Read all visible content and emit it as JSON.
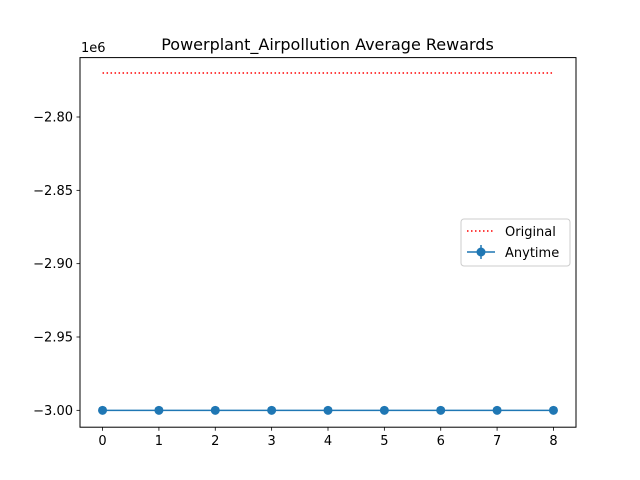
{
  "chart_data": {
    "type": "line",
    "title": "Powerplant_Airpollution Average Rewards",
    "xlabel": "",
    "ylabel": "",
    "y_offset_label": "1e6",
    "x": [
      0,
      1,
      2,
      3,
      4,
      5,
      6,
      7,
      8
    ],
    "x_tick_labels": [
      "0",
      "1",
      "2",
      "3",
      "4",
      "5",
      "6",
      "7",
      "8"
    ],
    "y_ticks": [
      -2.8,
      -2.85,
      -2.9,
      -2.95,
      -3.0
    ],
    "y_tick_labels": [
      "−2.80",
      "−2.85",
      "−2.90",
      "−2.95",
      "−3.00"
    ],
    "xlim": [
      -0.4,
      8.4
    ],
    "ylim": [
      -3.0115,
      -2.7595
    ],
    "grid": false,
    "legend_position": "center-right",
    "series": [
      {
        "name": "Original",
        "style": "dotted",
        "color": "#ff0000",
        "values": [
          -2.77,
          -2.77,
          -2.77,
          -2.77,
          -2.77,
          -2.77,
          -2.77,
          -2.77,
          -2.77
        ]
      },
      {
        "name": "Anytime",
        "style": "solid-markers-errorbars",
        "color": "#1f77b4",
        "values": [
          -3.0,
          -3.0,
          -3.0,
          -3.0,
          -3.0,
          -3.0,
          -3.0,
          -3.0,
          -3.0
        ]
      }
    ]
  }
}
